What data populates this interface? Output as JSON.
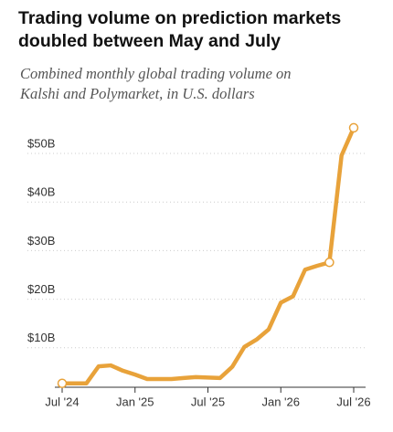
{
  "chart_data": {
    "type": "line",
    "title": [
      "Trading volume on prediction markets",
      "doubled between May and July"
    ],
    "subtitle": [
      "Combined monthly global trading volume on",
      "Kalshi and Polymarket, in U.S. dollars"
    ],
    "categories": [
      "Jul '24",
      null,
      null,
      null,
      null,
      null,
      "Jan '25",
      null,
      null,
      null,
      null,
      null,
      "Jul '25",
      null,
      null,
      null,
      null,
      null,
      "Jan '26",
      null,
      null,
      null,
      null,
      null,
      "Jul '26"
    ],
    "series": [
      {
        "color": "#e8a23a",
        "values": [
          0.8,
          0.8,
          0.8,
          4.3,
          4.5,
          3.4,
          2.6,
          1.7,
          1.7,
          1.7,
          1.9,
          2.1,
          2.0,
          1.9,
          4.2,
          8.3,
          9.8,
          11.9,
          17.4,
          18.7,
          24.2,
          25.0,
          25.7,
          47.7,
          53.4
        ]
      }
    ],
    "markers": [
      0,
      22,
      24
    ],
    "ylim": [
      0,
      55
    ],
    "yticks": [
      {
        "value": 10,
        "label": "$10B"
      },
      {
        "value": 20,
        "label": "$20B"
      },
      {
        "value": 30,
        "label": "$30B"
      },
      {
        "value": 40,
        "label": "$40B"
      },
      {
        "value": 50,
        "label": "$50B"
      }
    ],
    "grid": true
  }
}
